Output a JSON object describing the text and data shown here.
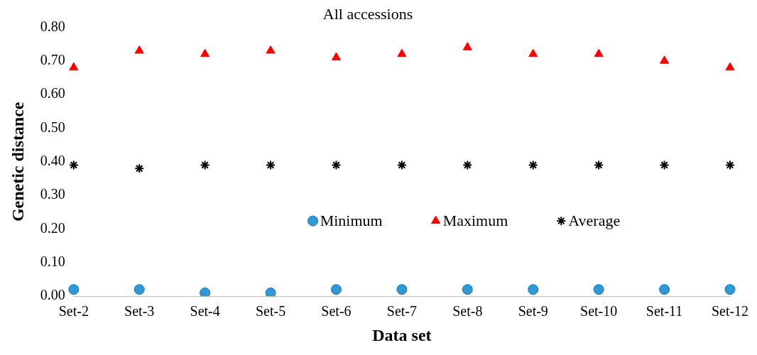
{
  "chart_data": {
    "type": "scatter",
    "title": "All accessions",
    "xlabel": "Data set",
    "ylabel": "Genetic distance",
    "categories": [
      "Set-2",
      "Set-3",
      "Set-4",
      "Set-5",
      "Set-6",
      "Set-7",
      "Set-8",
      "Set-9",
      "Set-10",
      "Set-11",
      "Set-12"
    ],
    "series": [
      {
        "name": "Minimum",
        "color": "#2e9bd6",
        "marker": "circle",
        "values": [
          0.02,
          0.02,
          0.01,
          0.01,
          0.02,
          0.02,
          0.02,
          0.02,
          0.02,
          0.02,
          0.02
        ]
      },
      {
        "name": "Maximum",
        "color": "#ff0000",
        "marker": "triangle",
        "values": [
          0.68,
          0.73,
          0.72,
          0.73,
          0.71,
          0.72,
          0.74,
          0.72,
          0.72,
          0.7,
          0.68
        ]
      },
      {
        "name": "Average",
        "color": "#000000",
        "marker": "cross",
        "values": [
          0.39,
          0.38,
          0.39,
          0.39,
          0.39,
          0.39,
          0.39,
          0.39,
          0.39,
          0.39,
          0.39
        ]
      }
    ],
    "ylim": [
      0,
      0.8
    ],
    "yticks": [
      {
        "value": 0,
        "label": "0.00"
      },
      {
        "value": 0.1,
        "label": "0.10"
      },
      {
        "value": 0.2,
        "label": "0.20"
      },
      {
        "value": 0.3,
        "label": "0.30"
      },
      {
        "value": 0.4,
        "label": "0.40"
      },
      {
        "value": 0.5,
        "label": "0.50"
      },
      {
        "value": 0.6,
        "label": "0.60"
      },
      {
        "value": 0.7,
        "label": "0.70"
      },
      {
        "value": 0.8,
        "label": "0.80"
      }
    ],
    "grid": false,
    "legend": "center"
  }
}
